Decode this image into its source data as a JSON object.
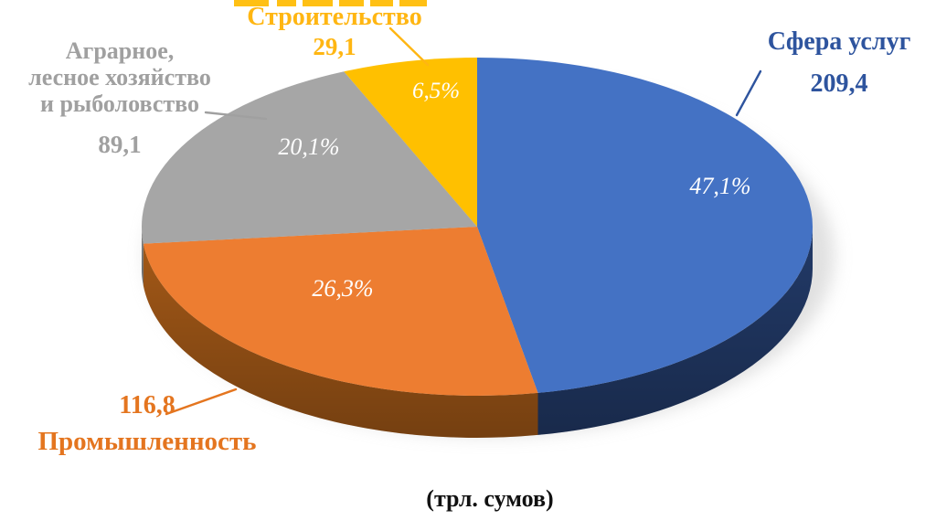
{
  "chart_data": {
    "type": "pie",
    "style": "3d-pie",
    "unit_note": "(трл. сумов)",
    "legend_position": "outside-callouts",
    "data_labels": "percent-inside, name-and-value-outside",
    "slices": [
      {
        "key": "services",
        "label": "Сфера услуг",
        "value": "209,4",
        "percent": 47.1,
        "percent_label": "47,1%",
        "color": "#4472C4",
        "side_color": "#223A68",
        "label_color": "#2E549E"
      },
      {
        "key": "industry",
        "label": "Промышленность",
        "value": "116,8",
        "percent": 26.3,
        "percent_label": "26,3%",
        "color": "#ED7D31",
        "side_color": "#A25817",
        "label_color": "#E4751F"
      },
      {
        "key": "agriculture",
        "label": "Аграрное,\nлесное хозяйство\nи рыболовство",
        "value": "89,1",
        "percent": 20.1,
        "percent_label": "20,1%",
        "color": "#A6A6A6",
        "side_color": "#828282",
        "label_color": "#A0A0A0"
      },
      {
        "key": "construction",
        "label": "Строительство",
        "value": "29,1",
        "percent": 6.5,
        "percent_label": "6,5%",
        "color": "#FFC000",
        "side_color": "#BF8F00",
        "label_color": "#FFB612"
      }
    ]
  }
}
